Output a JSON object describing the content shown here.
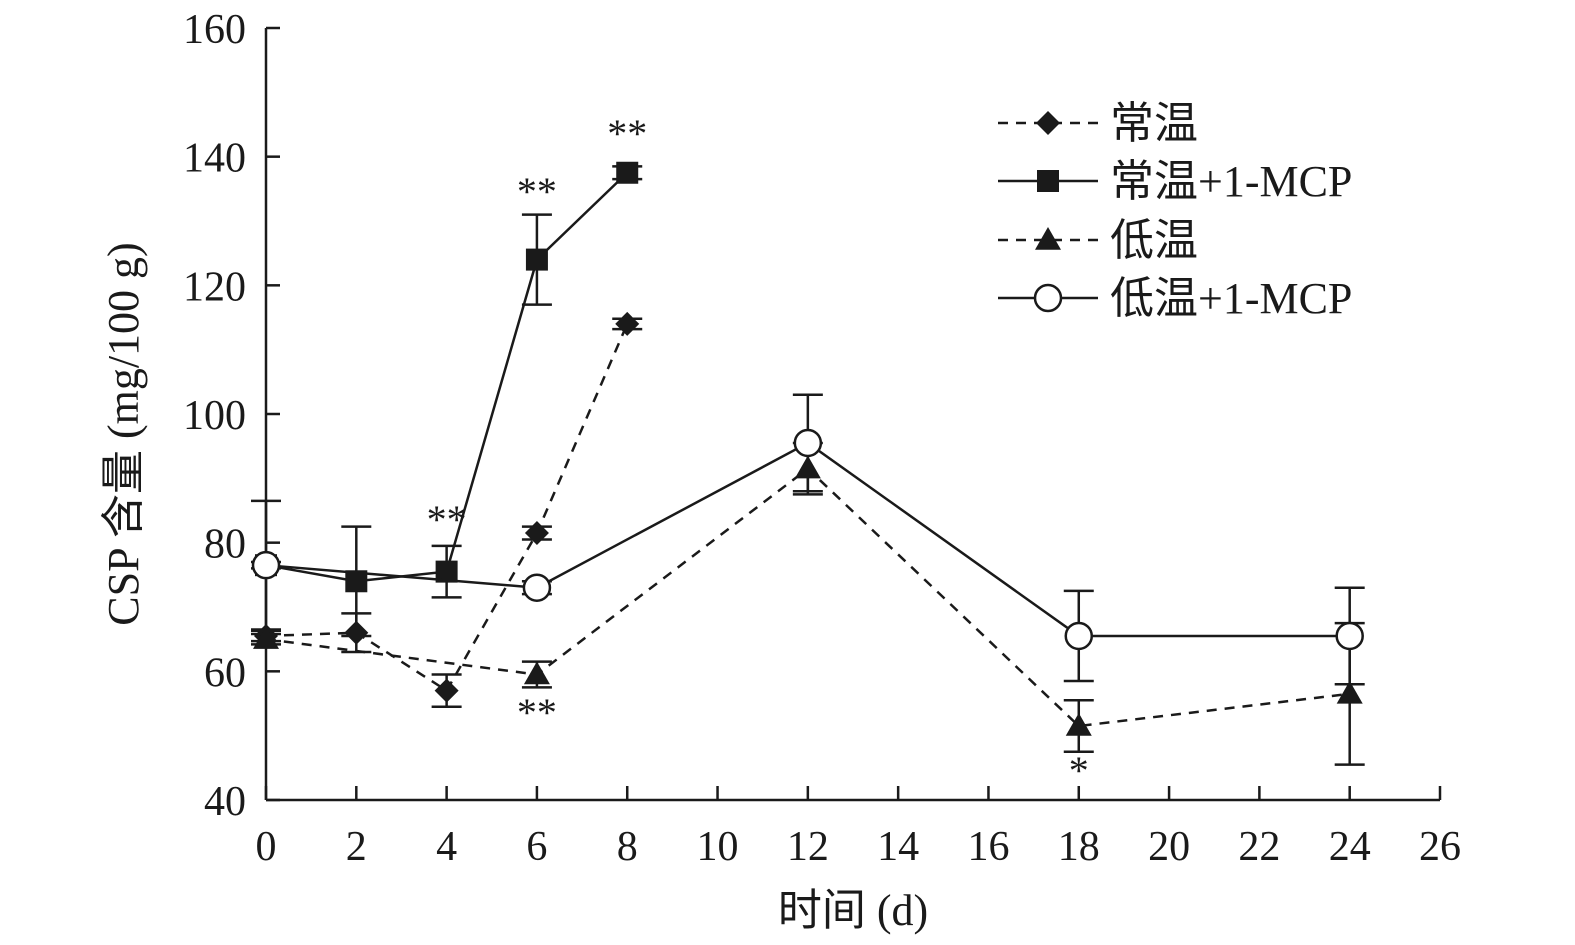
{
  "chart_data": {
    "type": "line",
    "title": "",
    "xlabel": "时间 (d)",
    "ylabel": "CSP 含量 (mg/100 g)",
    "xlim": [
      0,
      26
    ],
    "ylim": [
      40,
      160
    ],
    "xticks": [
      0,
      2,
      4,
      6,
      8,
      10,
      12,
      14,
      16,
      18,
      20,
      22,
      24,
      26
    ],
    "yticks": [
      40,
      60,
      80,
      100,
      120,
      140,
      160
    ],
    "legend_position": "top-right",
    "series": [
      {
        "name": "常温",
        "line": "dashed",
        "marker": "diamond",
        "x": [
          0,
          2,
          4,
          6,
          8
        ],
        "y": [
          65.5,
          66,
          57,
          81.5,
          114
        ],
        "err": [
          0.8,
          3,
          2.5,
          1,
          0.8
        ]
      },
      {
        "name": "常温+1-MCP",
        "line": "solid",
        "marker": "square",
        "x": [
          0,
          2,
          4,
          6,
          8
        ],
        "y": [
          76.5,
          74,
          75.5,
          124,
          137.5
        ],
        "err": [
          10,
          8.5,
          4,
          7,
          1
        ]
      },
      {
        "name": "低温",
        "line": "dashed",
        "marker": "triangle",
        "x": [
          0,
          6,
          12,
          18,
          24
        ],
        "y": [
          65,
          59.5,
          91.5,
          51.5,
          56.5
        ],
        "err": [
          0.8,
          2,
          4,
          4,
          11
        ]
      },
      {
        "name": "低温+1-MCP",
        "line": "solid",
        "marker": "circle",
        "x": [
          0,
          6,
          12,
          18,
          24
        ],
        "y": [
          76.5,
          73,
          95.5,
          65.5,
          65.5
        ],
        "err": [
          0.5,
          1,
          7.5,
          7,
          7.5
        ]
      }
    ],
    "annotations": [
      {
        "text": "**",
        "x": 8,
        "y": 141.5
      },
      {
        "text": "**",
        "x": 6,
        "y": 132.5
      },
      {
        "text": "**",
        "x": 4,
        "y": 81.5
      },
      {
        "text": "**",
        "x": 6,
        "y": 51.5
      },
      {
        "text": "*",
        "x": 18,
        "y": 42.5
      }
    ]
  }
}
